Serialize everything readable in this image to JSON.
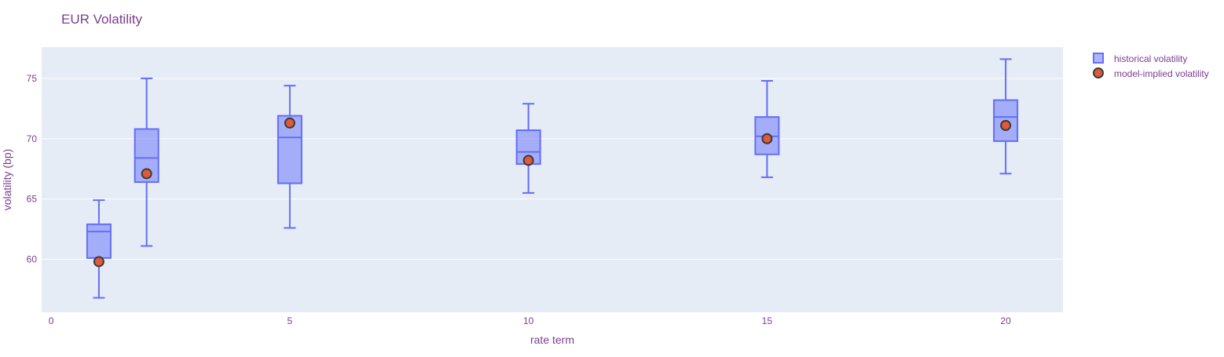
{
  "colors": {
    "text": "#7a3e8e",
    "plot_bg": "#e5ecf6",
    "grid": "#ffffff",
    "box_line": "#636efa",
    "box_fill": "rgba(99,110,250,0.5)",
    "marker_fill": "#e05a3a",
    "marker_line": "#3b3b3b"
  },
  "chart_data": {
    "type": "box",
    "title": "EUR Volatility",
    "xlabel": "rate term",
    "ylabel": "volatility (bp)",
    "xlim": [
      -0.2,
      21.2
    ],
    "ylim": [
      55.6,
      77.6
    ],
    "x_ticks": [
      0,
      5,
      10,
      15,
      20
    ],
    "y_ticks": [
      60,
      65,
      70,
      75
    ],
    "grid": true,
    "legend_position": "top-right",
    "series": [
      {
        "name": "historical volatility",
        "kind": "box",
        "boxes": [
          {
            "x": 1,
            "min": 56.8,
            "q1": 60.1,
            "median": 62.3,
            "q3": 62.9,
            "max": 64.9
          },
          {
            "x": 2,
            "min": 61.1,
            "q1": 66.4,
            "median": 68.4,
            "q3": 70.8,
            "max": 75.0
          },
          {
            "x": 5,
            "min": 62.6,
            "q1": 66.3,
            "median": 70.1,
            "q3": 71.9,
            "max": 74.4
          },
          {
            "x": 10,
            "min": 65.5,
            "q1": 67.9,
            "median": 68.9,
            "q3": 70.7,
            "max": 72.9
          },
          {
            "x": 15,
            "min": 66.8,
            "q1": 68.7,
            "median": 70.2,
            "q3": 71.8,
            "max": 74.8
          },
          {
            "x": 20,
            "min": 67.1,
            "q1": 69.8,
            "median": 71.8,
            "q3": 73.2,
            "max": 76.6
          }
        ]
      },
      {
        "name": "model-implied volatility",
        "kind": "scatter",
        "points": [
          {
            "x": 1,
            "y": 59.8
          },
          {
            "x": 2,
            "y": 67.1
          },
          {
            "x": 5,
            "y": 71.3
          },
          {
            "x": 10,
            "y": 68.2
          },
          {
            "x": 15,
            "y": 70.0
          },
          {
            "x": 20,
            "y": 71.1
          }
        ]
      }
    ]
  }
}
